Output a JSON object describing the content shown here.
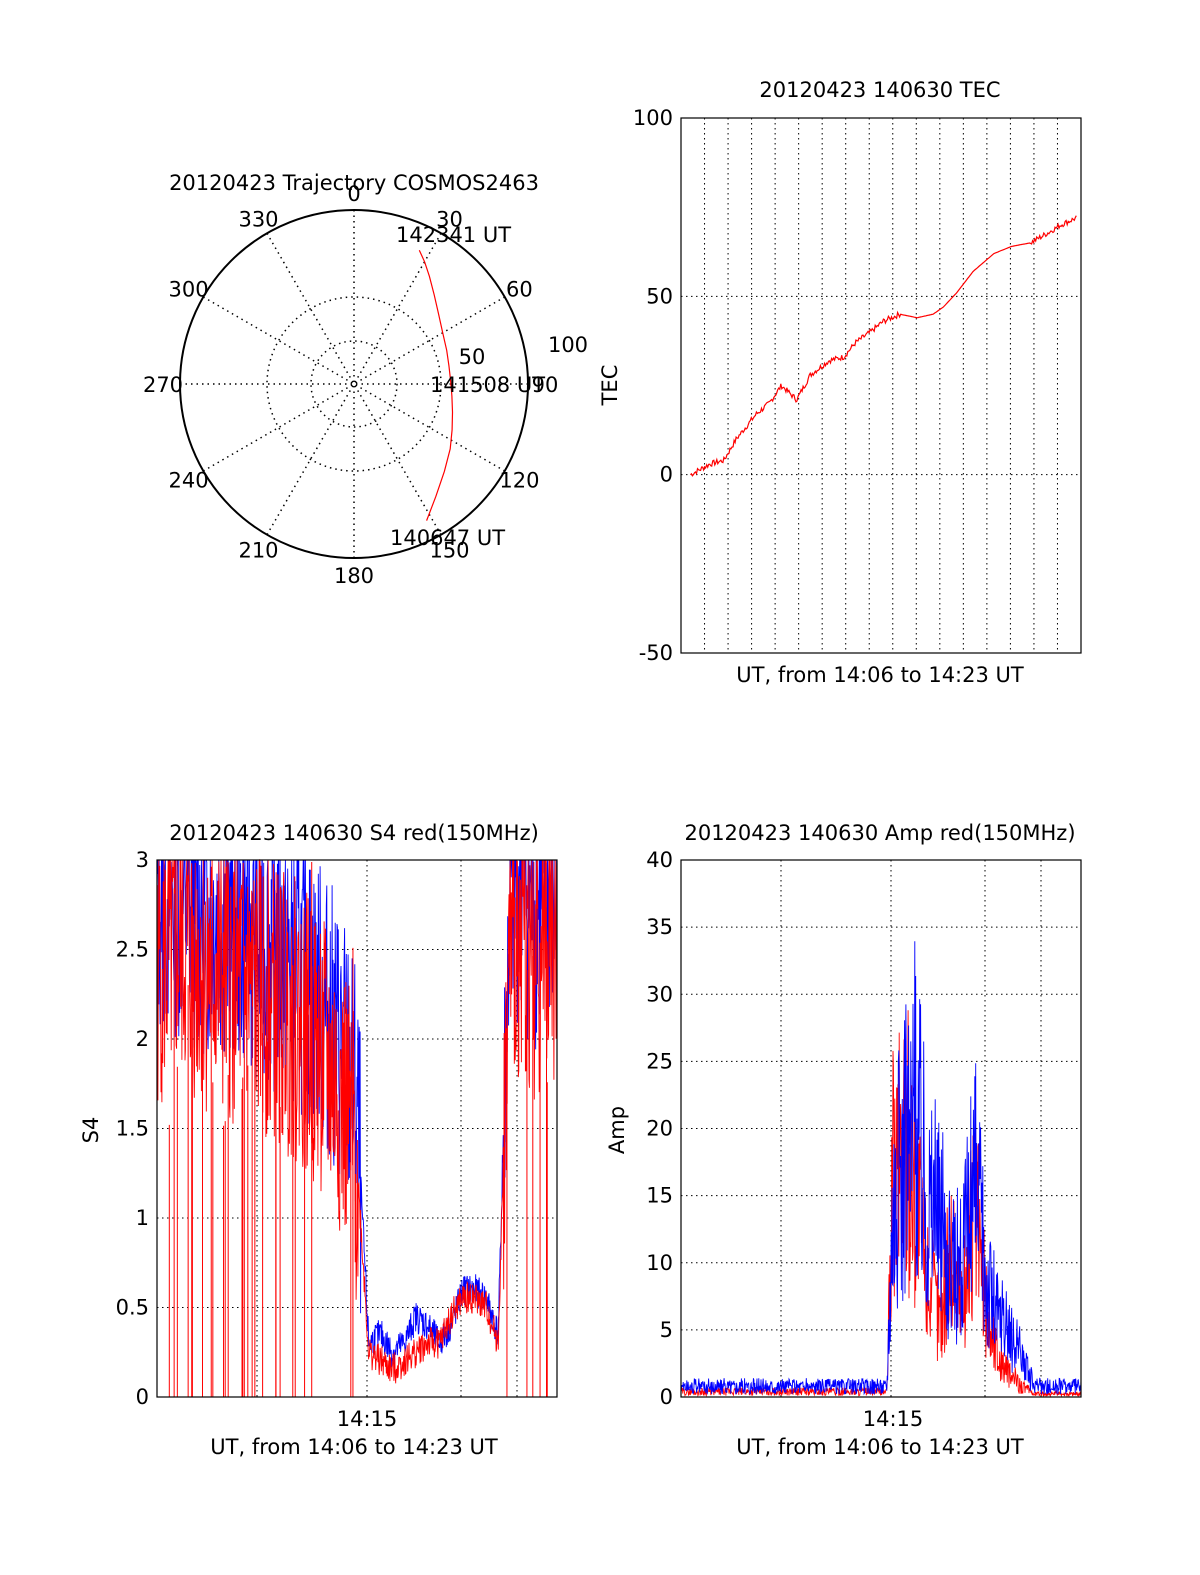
{
  "chart_data": [
    {
      "type": "polar",
      "title": "20120423 Trajectory COSMOS2463",
      "angle_ticks": [
        "0",
        "30",
        "60",
        "90",
        "120",
        "150",
        "180",
        "210",
        "240",
        "270",
        "300",
        "330"
      ],
      "radial_tick_labels": [
        "50",
        "100"
      ],
      "track_color": "#ff0000",
      "series": [
        {
          "points": [
            {
              "az": 26,
              "el": 13
            },
            {
              "az": 30,
              "el": 17
            },
            {
              "az": 35,
              "el": 22
            },
            {
              "az": 42,
              "el": 28
            },
            {
              "az": 50,
              "el": 33
            },
            {
              "az": 60,
              "el": 37
            },
            {
              "az": 70,
              "el": 39
            },
            {
              "az": 79,
              "el": 40
            },
            {
              "az": 88,
              "el": 40
            },
            {
              "az": 97,
              "el": 39
            },
            {
              "az": 106,
              "el": 37
            },
            {
              "az": 115,
              "el": 34
            },
            {
              "az": 124,
              "el": 30
            },
            {
              "az": 134,
              "el": 25
            },
            {
              "az": 144,
              "el": 18
            },
            {
              "az": 152,
              "el": 10
            }
          ]
        }
      ],
      "annotations": [
        "142341 UT",
        "141508 UT",
        "140647 UT"
      ]
    },
    {
      "type": "line",
      "title": "20120423 140630 TEC",
      "xlabel": "UT, from 14:06 to 14:23 UT",
      "ylabel": "TEC",
      "ylim": [
        -50,
        100
      ],
      "yticks": [
        "100",
        "50",
        "0",
        "-50"
      ],
      "xlim": [
        "14:06",
        "14:23"
      ],
      "x_gridlines": 17,
      "line_color": "#ff0000",
      "series": [
        {
          "x": [
            "14:06:24",
            "14:07:14",
            "14:07:49",
            "14:08:21",
            "14:09:12",
            "14:09:45",
            "14:10:16",
            "14:10:55",
            "14:11:30",
            "14:12:18",
            "14:12:55",
            "14:13:25",
            "14:14:03",
            "14:14:36",
            "14:15:18",
            "14:16:02",
            "14:16:43",
            "14:17:09",
            "14:17:43",
            "14:18:25",
            "14:19:18",
            "14:20:03",
            "14:20:51",
            "14:21:39",
            "14:22:08",
            "14:22:48"
          ],
          "y": [
            0,
            3,
            4,
            10,
            17,
            20,
            25,
            21,
            28,
            32,
            33,
            37,
            40,
            43,
            45,
            44,
            45,
            47,
            51,
            57,
            62,
            64,
            65,
            68,
            70,
            72
          ]
        }
      ]
    },
    {
      "type": "line",
      "title": "20120423 140630 S4 red(150MHz)",
      "xlabel": "UT, from 14:06 to 14:23 UT",
      "ylabel": "S4",
      "ylim": [
        0,
        3
      ],
      "yticks": [
        "0",
        "0.5",
        "1",
        "1.5",
        "2",
        "2.5",
        "3"
      ],
      "xticks": [
        "14:15"
      ],
      "xlim": [
        "14:06",
        "14:23"
      ],
      "series": [
        {
          "color": "#0000ff",
          "x": [
            "14:06",
            "14:07",
            "14:08",
            "14:09",
            "14:10",
            "14:11",
            "14:12",
            "14:13",
            "14:14",
            "14:14:30",
            "14:15",
            "14:15:30",
            "14:16",
            "14:16:30",
            "14:17",
            "14:17:30",
            "14:18",
            "14:18:30",
            "14:19",
            "14:19:30",
            "14:20",
            "14:20:30",
            "14:21",
            "14:21:30",
            "14:22",
            "14:22:30",
            "14:23"
          ],
          "y": [
            2.8,
            2.8,
            2.7,
            2.7,
            2.6,
            2.5,
            2.4,
            2.2,
            1.9,
            1.6,
            0.3,
            0.35,
            0.25,
            0.3,
            0.45,
            0.4,
            0.3,
            0.4,
            0.6,
            0.6,
            0.55,
            0.35,
            2.8,
            2.9,
            2.7,
            2.8,
            2.8
          ]
        },
        {
          "color": "#ff0000",
          "x": [
            "14:06",
            "14:07",
            "14:08",
            "14:09",
            "14:10",
            "14:11",
            "14:12",
            "14:13",
            "14:14",
            "14:14:30",
            "14:15",
            "14:15:30",
            "14:16",
            "14:16:30",
            "14:17",
            "14:17:30",
            "14:18",
            "14:18:30",
            "14:19",
            "14:19:30",
            "14:20",
            "14:20:30",
            "14:21",
            "14:21:30",
            "14:22",
            "14:22:30",
            "14:23"
          ],
          "y": [
            2.4,
            2.5,
            2.4,
            2.3,
            2.3,
            2.2,
            2.1,
            1.9,
            1.6,
            1.3,
            0.25,
            0.2,
            0.15,
            0.2,
            0.25,
            0.3,
            0.3,
            0.45,
            0.55,
            0.55,
            0.5,
            0.3,
            2.5,
            2.6,
            2.4,
            2.6,
            2.5
          ]
        }
      ]
    },
    {
      "type": "line",
      "title": "20120423 140630 Amp red(150MHz)",
      "xlabel": "UT, from 14:06 to 14:23 UT",
      "ylabel": "Amp",
      "ylim": [
        0,
        40
      ],
      "yticks": [
        "0",
        "5",
        "10",
        "15",
        "20",
        "25",
        "30",
        "35",
        "40"
      ],
      "xticks": [
        "14:15"
      ],
      "xlim": [
        "14:06",
        "14:23"
      ],
      "series": [
        {
          "color": "#ff0000",
          "x": [
            "14:06",
            "14:10",
            "14:14:45",
            "14:15:00",
            "14:15:30",
            "14:16:00",
            "14:16:30",
            "14:17:00",
            "14:17:30",
            "14:18:00",
            "14:18:30",
            "14:19:00",
            "14:19:30",
            "14:20:00",
            "14:20:30",
            "14:21:00",
            "14:23"
          ],
          "y": [
            0.5,
            0.5,
            0.5,
            22,
            26,
            20,
            12,
            8,
            14,
            9,
            20,
            8,
            4,
            2,
            1,
            0.3,
            0.3
          ]
        },
        {
          "color": "#0000ff",
          "x": [
            "14:06",
            "14:10",
            "14:14:45",
            "14:15:00",
            "14:15:30",
            "14:16:00",
            "14:16:30",
            "14:17:00",
            "14:17:30",
            "14:18:00",
            "14:18:30",
            "14:19:00",
            "14:19:30",
            "14:20:00",
            "14:20:30",
            "14:21:00",
            "14:23"
          ],
          "y": [
            1,
            1,
            1,
            20,
            24,
            29,
            20,
            18,
            12,
            14,
            22,
            12,
            8,
            6,
            4,
            1,
            1
          ]
        }
      ]
    }
  ]
}
